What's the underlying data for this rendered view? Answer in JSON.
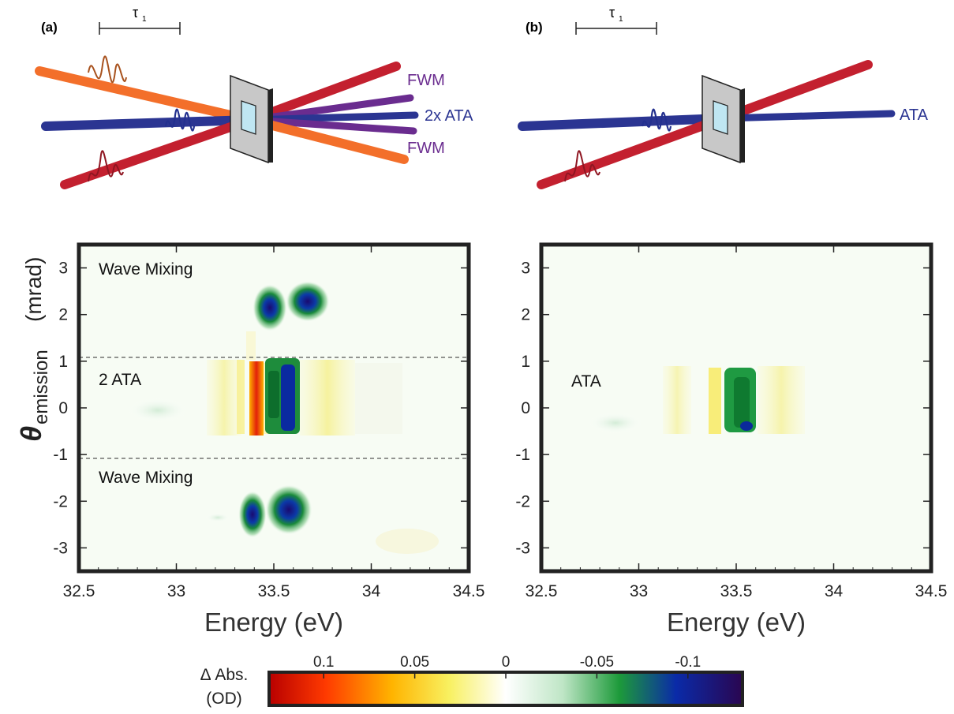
{
  "panels": [
    {
      "id": "a",
      "label": "(a)",
      "tau_label": "τ",
      "tau_sub": "1",
      "beam_labels": [
        "FWM",
        "2x ATA",
        "FWM"
      ],
      "region_labels": [
        "Wave Mixing",
        "2 ATA",
        "Wave Mixing"
      ]
    },
    {
      "id": "b",
      "label": "(b)",
      "tau_label": "τ",
      "tau_sub": "1",
      "beam_labels": [
        "ATA"
      ],
      "region_labels": [
        "ATA"
      ]
    }
  ],
  "colors": {
    "orange_beam": "#f36f2a",
    "blue_beam": "#2b3592",
    "red_beam": "#c3202f",
    "fwm_beam": "#6a2c8f",
    "fwm_text": "#6a2c8f",
    "ata_text": "#2b3592",
    "sample_frame": "#c8c8c8",
    "sample_window": "#bfe6f2"
  },
  "chart_data": [
    {
      "type": "heatmap",
      "panel": "a",
      "xlabel": "Energy (eV)",
      "ylabel_main": "θ",
      "ylabel_sub": "emission",
      "ylabel_unit": "(mrad)",
      "xlim": [
        32.5,
        34.5
      ],
      "ylim": [
        -3.5,
        3.5
      ],
      "x_ticks": [
        32.5,
        33,
        33.5,
        34,
        34.5
      ],
      "x_tick_labels": [
        "32.5",
        "33",
        "33.5",
        "34",
        "34.5"
      ],
      "y_ticks": [
        3,
        2,
        1,
        0,
        -1,
        -2,
        -3
      ],
      "y_tick_labels": [
        "3",
        "2",
        "1",
        "0",
        "-1",
        "-2",
        "-3"
      ],
      "dashed_lines_y": [
        1.1,
        -1.1
      ],
      "features": [
        {
          "x": 33.47,
          "y": 2.1,
          "value": -0.12
        },
        {
          "x": 33.65,
          "y": 2.2,
          "value": -0.1
        },
        {
          "x": 33.55,
          "y": 0.2,
          "value": -0.1
        },
        {
          "x": 33.42,
          "y": 0.0,
          "value": 0.1
        },
        {
          "x": 33.25,
          "y": 0.0,
          "value": 0.04
        },
        {
          "x": 33.75,
          "y": 0.0,
          "value": 0.04
        },
        {
          "x": 33.4,
          "y": -2.3,
          "value": -0.1
        },
        {
          "x": 33.6,
          "y": -2.2,
          "value": -0.12
        }
      ]
    },
    {
      "type": "heatmap",
      "panel": "b",
      "xlabel": "Energy (eV)",
      "xlim": [
        32.5,
        34.5
      ],
      "ylim": [
        -3.5,
        3.5
      ],
      "x_ticks": [
        32.5,
        33,
        33.5,
        34,
        34.5
      ],
      "x_tick_labels": [
        "32.5",
        "33",
        "33.5",
        "34",
        "34.5"
      ],
      "y_ticks": [
        3,
        2,
        1,
        0,
        -1,
        -2,
        -3
      ],
      "y_tick_labels": [
        "3",
        "2",
        "1",
        "0",
        "-1",
        "-2",
        "-3"
      ],
      "features": [
        {
          "x": 33.53,
          "y": 0.1,
          "value": -0.1
        },
        {
          "x": 33.42,
          "y": 0.0,
          "value": 0.05
        },
        {
          "x": 33.7,
          "y": 0.1,
          "value": 0.03
        }
      ]
    },
    {
      "type": "colorbar",
      "label_line1": "Δ Abs.",
      "label_line2": "(OD)",
      "ticks": [
        0.1,
        0.05,
        0,
        -0.05,
        -0.1
      ],
      "tick_labels": [
        "0.1",
        "0.05",
        "0",
        "-0.05",
        "-0.1"
      ],
      "range": [
        0.13,
        -0.13
      ]
    }
  ]
}
